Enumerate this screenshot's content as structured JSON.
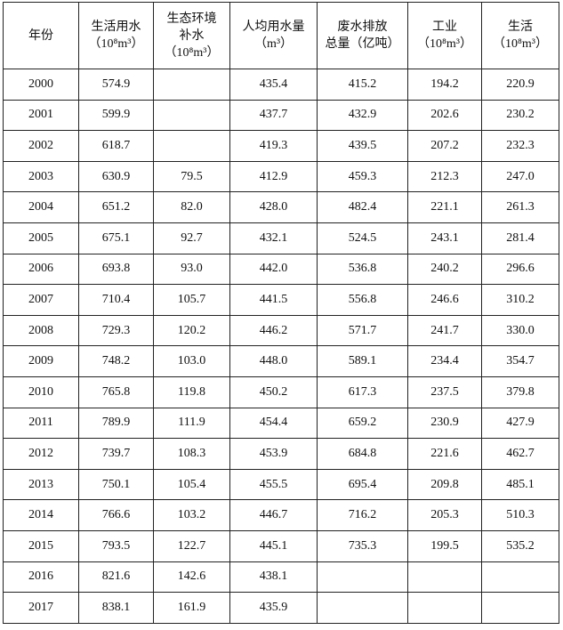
{
  "table": {
    "columns": [
      [
        "年份"
      ],
      [
        "生活用水",
        "（10⁸m³）"
      ],
      [
        "生态环境",
        "补水",
        "（10⁸m³）"
      ],
      [
        "人均用水量",
        "（m³）"
      ],
      [
        "废水排放",
        "总量（亿吨）"
      ],
      [
        "工业",
        "（10⁸m³）"
      ],
      [
        "生活",
        "（10⁸m³）"
      ]
    ],
    "rows": [
      [
        "2000",
        "574.9",
        null,
        "435.4",
        "415.2",
        "194.2",
        "220.9"
      ],
      [
        "2001",
        "599.9",
        null,
        "437.7",
        "432.9",
        "202.6",
        "230.2"
      ],
      [
        "2002",
        "618.7",
        null,
        "419.3",
        "439.5",
        "207.2",
        "232.3"
      ],
      [
        "2003",
        "630.9",
        "79.5",
        "412.9",
        "459.3",
        "212.3",
        "247.0"
      ],
      [
        "2004",
        "651.2",
        "82.0",
        "428.0",
        "482.4",
        "221.1",
        "261.3"
      ],
      [
        "2005",
        "675.1",
        "92.7",
        "432.1",
        "524.5",
        "243.1",
        "281.4"
      ],
      [
        "2006",
        "693.8",
        "93.0",
        "442.0",
        "536.8",
        "240.2",
        "296.6"
      ],
      [
        "2007",
        "710.4",
        "105.7",
        "441.5",
        "556.8",
        "246.6",
        "310.2"
      ],
      [
        "2008",
        "729.3",
        "120.2",
        "446.2",
        "571.7",
        "241.7",
        "330.0"
      ],
      [
        "2009",
        "748.2",
        "103.0",
        "448.0",
        "589.1",
        "234.4",
        "354.7"
      ],
      [
        "2010",
        "765.8",
        "119.8",
        "450.2",
        "617.3",
        "237.5",
        "379.8"
      ],
      [
        "2011",
        "789.9",
        "111.9",
        "454.4",
        "659.2",
        "230.9",
        "427.9"
      ],
      [
        "2012",
        "739.7",
        "108.3",
        "453.9",
        "684.8",
        "221.6",
        "462.7"
      ],
      [
        "2013",
        "750.1",
        "105.4",
        "455.5",
        "695.4",
        "209.8",
        "485.1"
      ],
      [
        "2014",
        "766.6",
        "103.2",
        "446.7",
        "716.2",
        "205.3",
        "510.3"
      ],
      [
        "2015",
        "793.5",
        "122.7",
        "445.1",
        "735.3",
        "199.5",
        "535.2"
      ],
      [
        "2016",
        "821.6",
        "142.6",
        "438.1",
        null,
        null,
        null
      ],
      [
        "2017",
        "838.1",
        "161.9",
        "435.9",
        null,
        null,
        null
      ]
    ]
  }
}
